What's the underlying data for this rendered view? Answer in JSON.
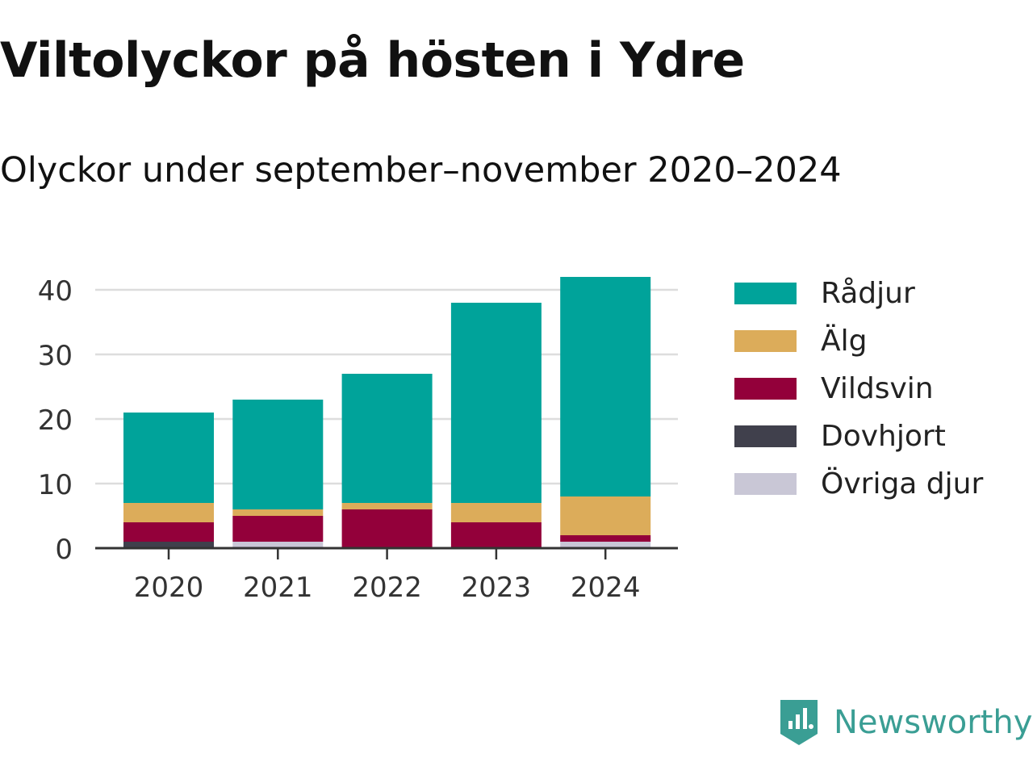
{
  "title": "Viltolyckor på hösten i Ydre",
  "subtitle": "Olyckor under september–november 2020–2024",
  "brand": "Newsworthy",
  "chart_data": {
    "type": "bar",
    "stacked": true,
    "categories": [
      "2020",
      "2021",
      "2022",
      "2023",
      "2024"
    ],
    "series": [
      {
        "name": "Övriga djur",
        "color": "#c9c7d6",
        "values": [
          0,
          1,
          0,
          0,
          1
        ]
      },
      {
        "name": "Dovhjort",
        "color": "#40404c",
        "values": [
          1,
          0,
          0,
          0,
          0
        ]
      },
      {
        "name": "Vildsvin",
        "color": "#93003a",
        "values": [
          3,
          4,
          6,
          4,
          1
        ]
      },
      {
        "name": "Älg",
        "color": "#dcac5a",
        "values": [
          3,
          1,
          1,
          3,
          6
        ]
      },
      {
        "name": "Rådjur",
        "color": "#00a39a",
        "values": [
          14,
          17,
          20,
          31,
          34
        ]
      }
    ],
    "legend_order": [
      "Rådjur",
      "Älg",
      "Vildsvin",
      "Dovhjort",
      "Övriga djur"
    ],
    "yticks": [
      "0",
      "10",
      "20",
      "30",
      "40"
    ],
    "ylim": [
      0,
      44
    ],
    "grid": true,
    "legend": "right"
  }
}
